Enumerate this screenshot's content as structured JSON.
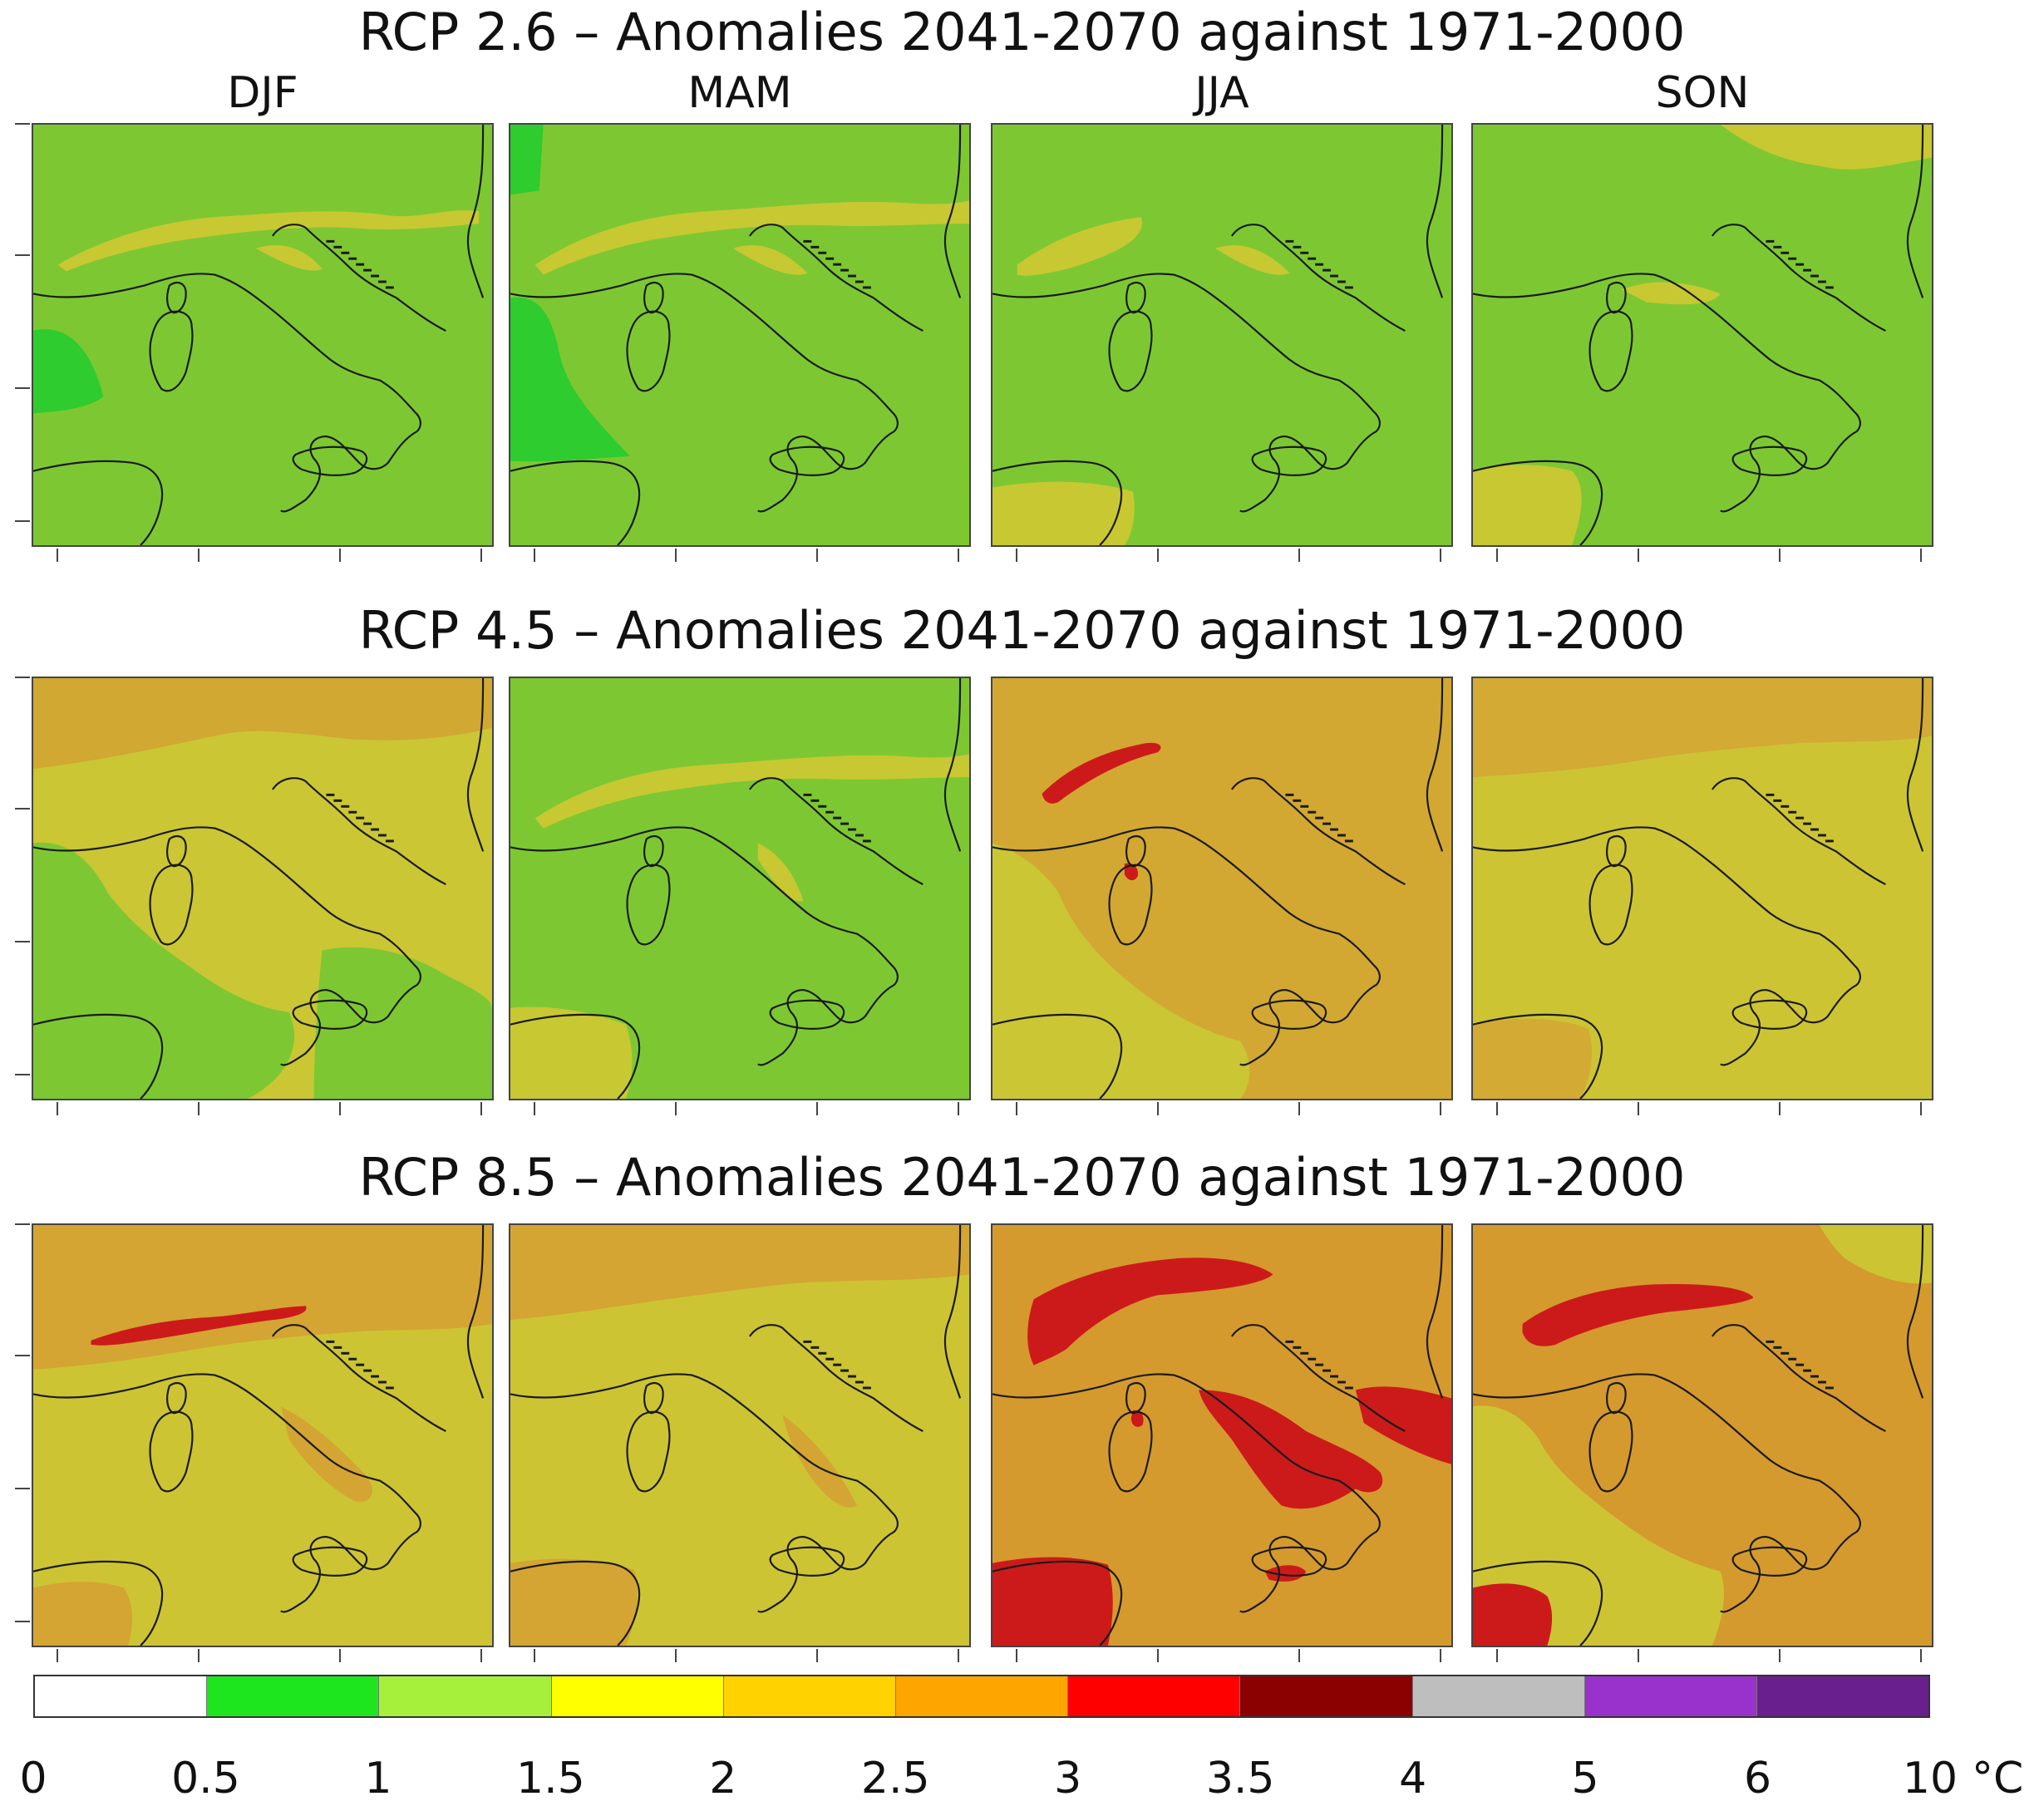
{
  "row_titles": [
    "RCP 2.6 – Anomalies 2041-2070 against 1971-2000",
    "RCP 4.5 – Anomalies 2041-2070 against 1971-2000",
    "RCP 8.5 – Anomalies 2041-2070 against 1971-2000"
  ],
  "seasons": [
    "DJF",
    "MAM",
    "JJA",
    "SON"
  ],
  "panels": [
    {
      "scenario": "RCP 2.6",
      "season": "DJF",
      "base_color": "#7dc832",
      "overlays": [
        {
          "class": "1.5-2",
          "color": "#c8c832"
        },
        {
          "class": "0.5-1",
          "color": "#2ecc2e"
        }
      ]
    },
    {
      "scenario": "RCP 2.6",
      "season": "MAM",
      "base_color": "#7dc832",
      "overlays": [
        {
          "class": "1.5-2",
          "color": "#c8c832"
        },
        {
          "class": "0.5-1",
          "color": "#2ecc2e"
        }
      ]
    },
    {
      "scenario": "RCP 2.6",
      "season": "JJA",
      "base_color": "#7dc832",
      "overlays": [
        {
          "class": "1.5-2",
          "color": "#c8c832"
        }
      ]
    },
    {
      "scenario": "RCP 2.6",
      "season": "SON",
      "base_color": "#7dc832",
      "overlays": [
        {
          "class": "1.5-2",
          "color": "#c8c832"
        }
      ]
    },
    {
      "scenario": "RCP 4.5",
      "season": "DJF",
      "base_color": "#cbc634",
      "overlays": [
        {
          "class": "1-1.5",
          "color": "#7dc832"
        },
        {
          "class": "2-2.5",
          "color": "#d0a832"
        }
      ]
    },
    {
      "scenario": "RCP 4.5",
      "season": "MAM",
      "base_color": "#7dc832",
      "overlays": [
        {
          "class": "1.5-2",
          "color": "#c8c832"
        }
      ]
    },
    {
      "scenario": "RCP 4.5",
      "season": "JJA",
      "base_color": "#d2a832",
      "overlays": [
        {
          "class": "1.5-2",
          "color": "#cbc634"
        },
        {
          "class": "3-3.5",
          "color": "#cc1a1a"
        }
      ]
    },
    {
      "scenario": "RCP 4.5",
      "season": "SON",
      "base_color": "#cdc434",
      "overlays": [
        {
          "class": "2-2.5",
          "color": "#d2aa34"
        }
      ]
    },
    {
      "scenario": "RCP 8.5",
      "season": "DJF",
      "base_color": "#cdc434",
      "overlays": [
        {
          "class": "2-2.5",
          "color": "#d4a532"
        },
        {
          "class": "3-3.5",
          "color": "#cc1a1a"
        }
      ]
    },
    {
      "scenario": "RCP 8.5",
      "season": "MAM",
      "base_color": "#cdc434",
      "overlays": [
        {
          "class": "2-2.5",
          "color": "#d4a532"
        }
      ]
    },
    {
      "scenario": "RCP 8.5",
      "season": "JJA",
      "base_color": "#d49a2e",
      "overlays": [
        {
          "class": "3-3.5",
          "color": "#cc1a1a"
        }
      ]
    },
    {
      "scenario": "RCP 8.5",
      "season": "SON",
      "base_color": "#d49a2e",
      "overlays": [
        {
          "class": "2-2.5",
          "color": "#cdc434"
        },
        {
          "class": "3-3.5",
          "color": "#cc1a1a"
        }
      ]
    }
  ],
  "colorbar": {
    "colors": [
      "#ffffff",
      "#1ee61e",
      "#a6f03c",
      "#ffff00",
      "#ffd200",
      "#ffa500",
      "#ff0000",
      "#8b0000",
      "#bebebe",
      "#9932cc",
      "#6a1f8f"
    ],
    "labels": [
      "0",
      "0.5",
      "1",
      "1.5",
      "2",
      "2.5",
      "3",
      "3.5",
      "4",
      "5",
      "6",
      "10"
    ],
    "unit": "°C"
  }
}
